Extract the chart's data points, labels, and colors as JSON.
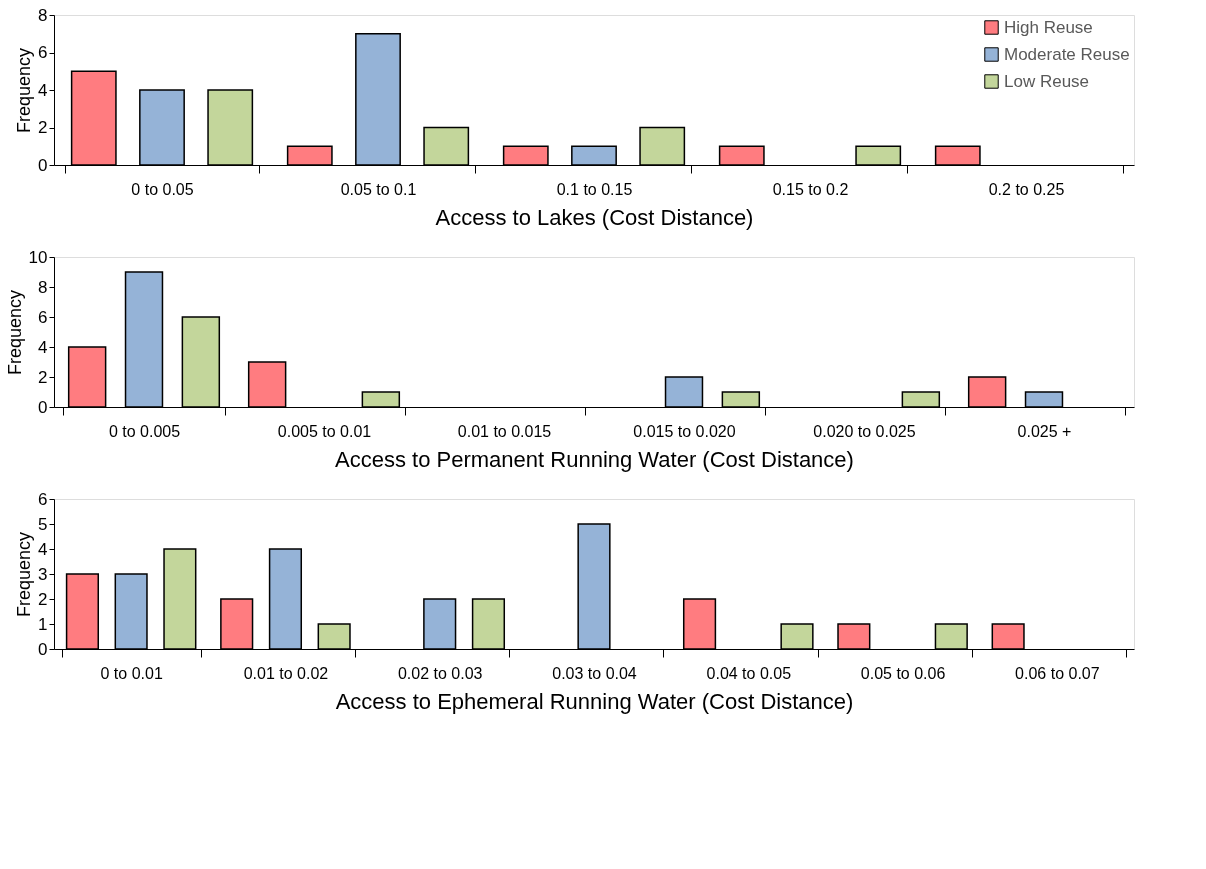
{
  "chart_data": [
    {
      "type": "bar",
      "xlabel": "Access to Lakes (Cost Distance)",
      "ylabel": "Frequency",
      "categories": [
        "0 to 0.05",
        "0.05 to 0.1",
        "0.1 to 0.15",
        "0.15 to 0.2",
        "0.2 to 0.25"
      ],
      "ylim": [
        0,
        8
      ],
      "yticks": [
        0,
        2,
        4,
        6,
        8
      ],
      "grid": false,
      "legend": "top right",
      "series": [
        {
          "name": "High Reuse",
          "color": "#ff7c80",
          "values": [
            5,
            1,
            1,
            1,
            1
          ]
        },
        {
          "name": "Moderate Reuse",
          "color": "#95b3d7",
          "values": [
            4,
            7,
            1,
            0,
            0
          ]
        },
        {
          "name": "Low Reuse",
          "color": "#c3d69b",
          "values": [
            4,
            2,
            2,
            1,
            0
          ]
        }
      ]
    },
    {
      "type": "bar",
      "xlabel": "Access to Permanent Running Water (Cost Distance)",
      "ylabel": "Frequency",
      "categories": [
        "0 to 0.005",
        "0.005 to 0.01",
        "0.01 to 0.015",
        "0.015 to 0.020",
        "0.020 to 0.025",
        "0.025 +"
      ],
      "ylim": [
        0,
        10
      ],
      "yticks": [
        0,
        2,
        4,
        6,
        8,
        10
      ],
      "grid": false,
      "series": [
        {
          "color": "#ff7c80",
          "values": [
            4,
            3,
            0,
            0,
            0,
            2
          ]
        },
        {
          "color": "#95b3d7",
          "values": [
            9,
            0,
            0,
            2,
            0,
            1
          ]
        },
        {
          "color": "#c3d69b",
          "values": [
            6,
            1,
            0,
            1,
            1,
            0
          ]
        }
      ]
    },
    {
      "type": "bar",
      "xlabel": "Access to Ephemeral Running Water (Cost Distance)",
      "ylabel": "Frequency",
      "categories": [
        "0 to 0.01",
        "0.01 to 0.02",
        "0.02 to 0.03",
        "0.03 to 0.04",
        "0.04 to 0.05",
        "0.05 to 0.06",
        "0.06 to 0.07"
      ],
      "ylim": [
        0,
        6
      ],
      "yticks": [
        0,
        1,
        2,
        3,
        4,
        5,
        6
      ],
      "grid": false,
      "series": [
        {
          "color": "#ff7c80",
          "values": [
            3,
            2,
            0,
            0,
            2,
            1,
            1
          ]
        },
        {
          "color": "#95b3d7",
          "values": [
            3,
            4,
            2,
            5,
            0,
            0,
            0
          ]
        },
        {
          "color": "#c3d69b",
          "values": [
            4,
            1,
            2,
            0,
            1,
            1,
            0
          ]
        }
      ]
    }
  ]
}
